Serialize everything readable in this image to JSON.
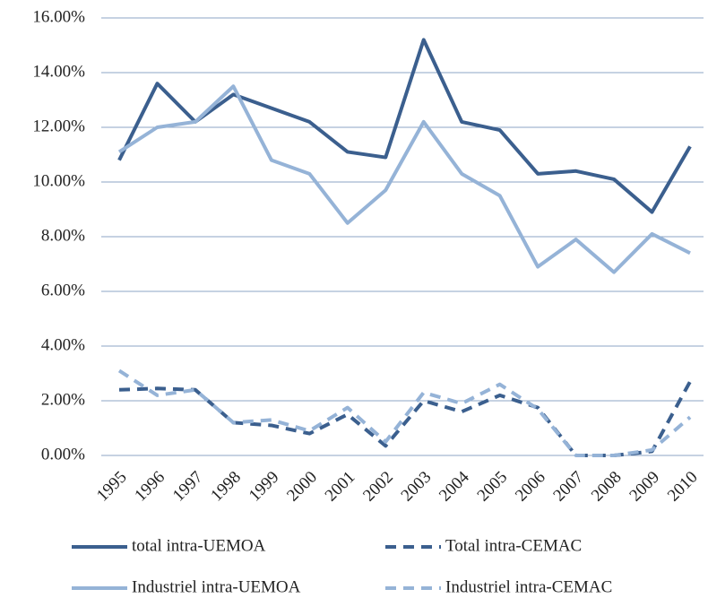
{
  "chart_data": {
    "type": "line",
    "categories": [
      "1995",
      "1996",
      "1997",
      "1998",
      "1999",
      "2000",
      "2001",
      "2002",
      "2003",
      "2004",
      "2005",
      "2006",
      "2007",
      "2008",
      "2009",
      "2010"
    ],
    "series": [
      {
        "name": "total intra-UEMOA",
        "color": "#3b5f8e",
        "dashed": false,
        "values": [
          10.8,
          13.6,
          12.2,
          13.2,
          12.7,
          12.2,
          11.1,
          10.9,
          15.2,
          12.2,
          11.9,
          10.3,
          10.4,
          10.1,
          8.9,
          11.3
        ]
      },
      {
        "name": "Total intra-CEMAC",
        "color": "#3b5f8e",
        "dashed": true,
        "values": [
          2.4,
          2.45,
          2.4,
          1.2,
          1.1,
          0.8,
          1.5,
          0.35,
          2.0,
          1.6,
          2.2,
          1.75,
          0.0,
          0.0,
          0.15,
          2.7
        ]
      },
      {
        "name": "Industriel intra-UEMOA",
        "color": "#95b3d7",
        "dashed": false,
        "values": [
          11.1,
          12.0,
          12.2,
          13.5,
          10.8,
          10.3,
          8.5,
          9.7,
          12.2,
          10.3,
          9.5,
          6.9,
          7.9,
          6.7,
          8.1,
          7.4
        ]
      },
      {
        "name": "Industriel intra-CEMAC",
        "color": "#95b3d7",
        "dashed": true,
        "values": [
          3.1,
          2.2,
          2.4,
          1.2,
          1.3,
          0.9,
          1.75,
          0.5,
          2.3,
          1.9,
          2.6,
          1.7,
          0.0,
          0.0,
          0.2,
          1.4
        ]
      }
    ],
    "ylim": [
      0,
      16
    ],
    "yticks": [
      {
        "value": 0,
        "label": "0.00%"
      },
      {
        "value": 2,
        "label": "2.00%"
      },
      {
        "value": 4,
        "label": "4.00%"
      },
      {
        "value": 6,
        "label": "6.00%"
      },
      {
        "value": 8,
        "label": "8.00%"
      },
      {
        "value": 10,
        "label": "10.00%"
      },
      {
        "value": 12,
        "label": "12.00%"
      },
      {
        "value": 14,
        "label": "14.00%"
      },
      {
        "value": 16,
        "label": "16.00%"
      }
    ],
    "grid": true,
    "legend": "bottom"
  }
}
